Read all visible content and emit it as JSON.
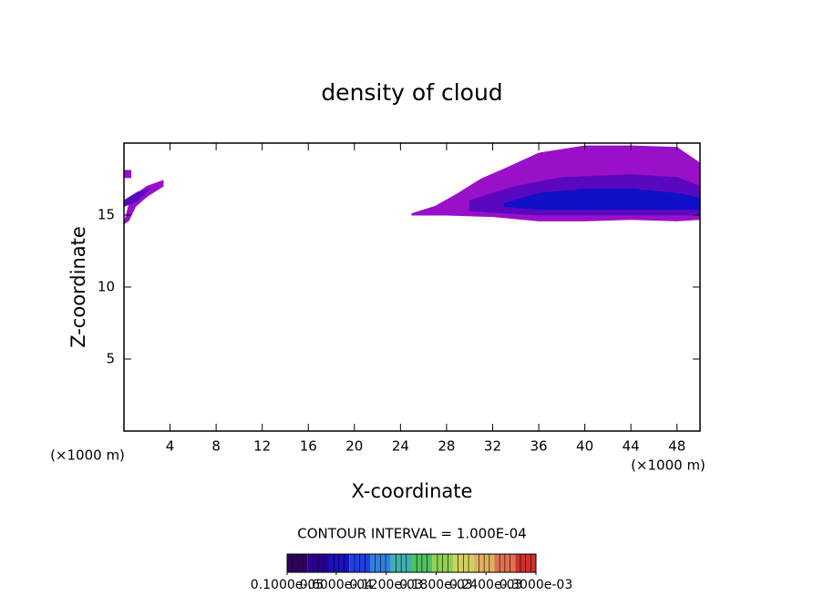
{
  "chart_data": {
    "type": "contour",
    "title": "density of cloud",
    "xlabel": "X-coordinate",
    "ylabel": "Z-coordinate",
    "xunit": "(×1000 m)",
    "yunit": "(×1000 m)",
    "xlim": [
      0,
      50
    ],
    "ylim": [
      0,
      20
    ],
    "xticks": [
      4,
      8,
      12,
      16,
      20,
      24,
      28,
      32,
      36,
      40,
      44,
      48
    ],
    "yticks": [
      5,
      10,
      15
    ],
    "regions": [
      {
        "level": 1e-06,
        "color": "#9a10c8",
        "x": [
          25,
          27,
          29,
          31,
          33,
          36,
          40,
          44,
          48,
          50,
          50,
          48,
          44,
          40,
          36,
          32,
          28,
          25
        ],
        "z": [
          15.1,
          15.6,
          16.5,
          17.5,
          18.2,
          19.3,
          19.8,
          19.8,
          19.7,
          18.6,
          14.7,
          14.6,
          14.7,
          14.6,
          14.6,
          14.9,
          15.0,
          15.0
        ]
      },
      {
        "level": 1e-06,
        "color": "#9a10c8",
        "x": [
          0,
          0.6,
          2,
          3.4,
          3.4,
          2,
          1,
          0.4,
          0
        ],
        "z": [
          14.4,
          16.2,
          17.0,
          17.4,
          17.0,
          16.3,
          15.6,
          14.6,
          14.4
        ]
      },
      {
        "level": 1e-06,
        "color": "#9a10c8",
        "x": [
          0,
          0.6,
          0.6,
          0
        ],
        "z": [
          17.6,
          17.6,
          18.1,
          18.1
        ]
      },
      {
        "level": 6e-05,
        "color": "#5a08c0",
        "x": [
          30,
          34,
          38,
          44,
          48,
          50,
          50,
          44,
          36,
          30
        ],
        "z": [
          16.0,
          17.0,
          17.6,
          17.8,
          17.6,
          17.0,
          15.0,
          15.0,
          15.0,
          15.3
        ]
      },
      {
        "level": 6e-05,
        "color": "#5a08c0",
        "x": [
          0,
          1.2,
          2.2,
          1.2,
          0
        ],
        "z": [
          16.0,
          16.6,
          16.8,
          16.0,
          15.6
        ]
      },
      {
        "level": 0.00012,
        "color": "#1010c8",
        "x": [
          33,
          36,
          40,
          44,
          48,
          50,
          50,
          44,
          36,
          33
        ],
        "z": [
          15.8,
          16.5,
          16.8,
          16.8,
          16.5,
          16.2,
          15.4,
          15.4,
          15.4,
          15.6
        ]
      }
    ],
    "contour_interval": "CONTOUR INTERVAL = 1.000E-04",
    "colorbar": {
      "colors": [
        "#300060",
        "#2a0090",
        "#1a10c0",
        "#2040e0",
        "#3080e0",
        "#40b0b0",
        "#50c060",
        "#90d050",
        "#d0d060",
        "#e0b060",
        "#e07050",
        "#d03030"
      ],
      "ticks": [
        {
          "value": 1e-06,
          "label": "0.1000e-05"
        },
        {
          "value": 6e-05,
          "label": "0.6000e-04"
        },
        {
          "value": 0.00012,
          "label": "0.1200e-03"
        },
        {
          "value": 0.00018,
          "label": "0.1800e-03"
        },
        {
          "value": 0.00024,
          "label": "0.2400e-03"
        },
        {
          "value": 0.0003,
          "label": "0.3000e-03"
        }
      ],
      "lim": [
        1e-06,
        0.0003
      ]
    }
  }
}
